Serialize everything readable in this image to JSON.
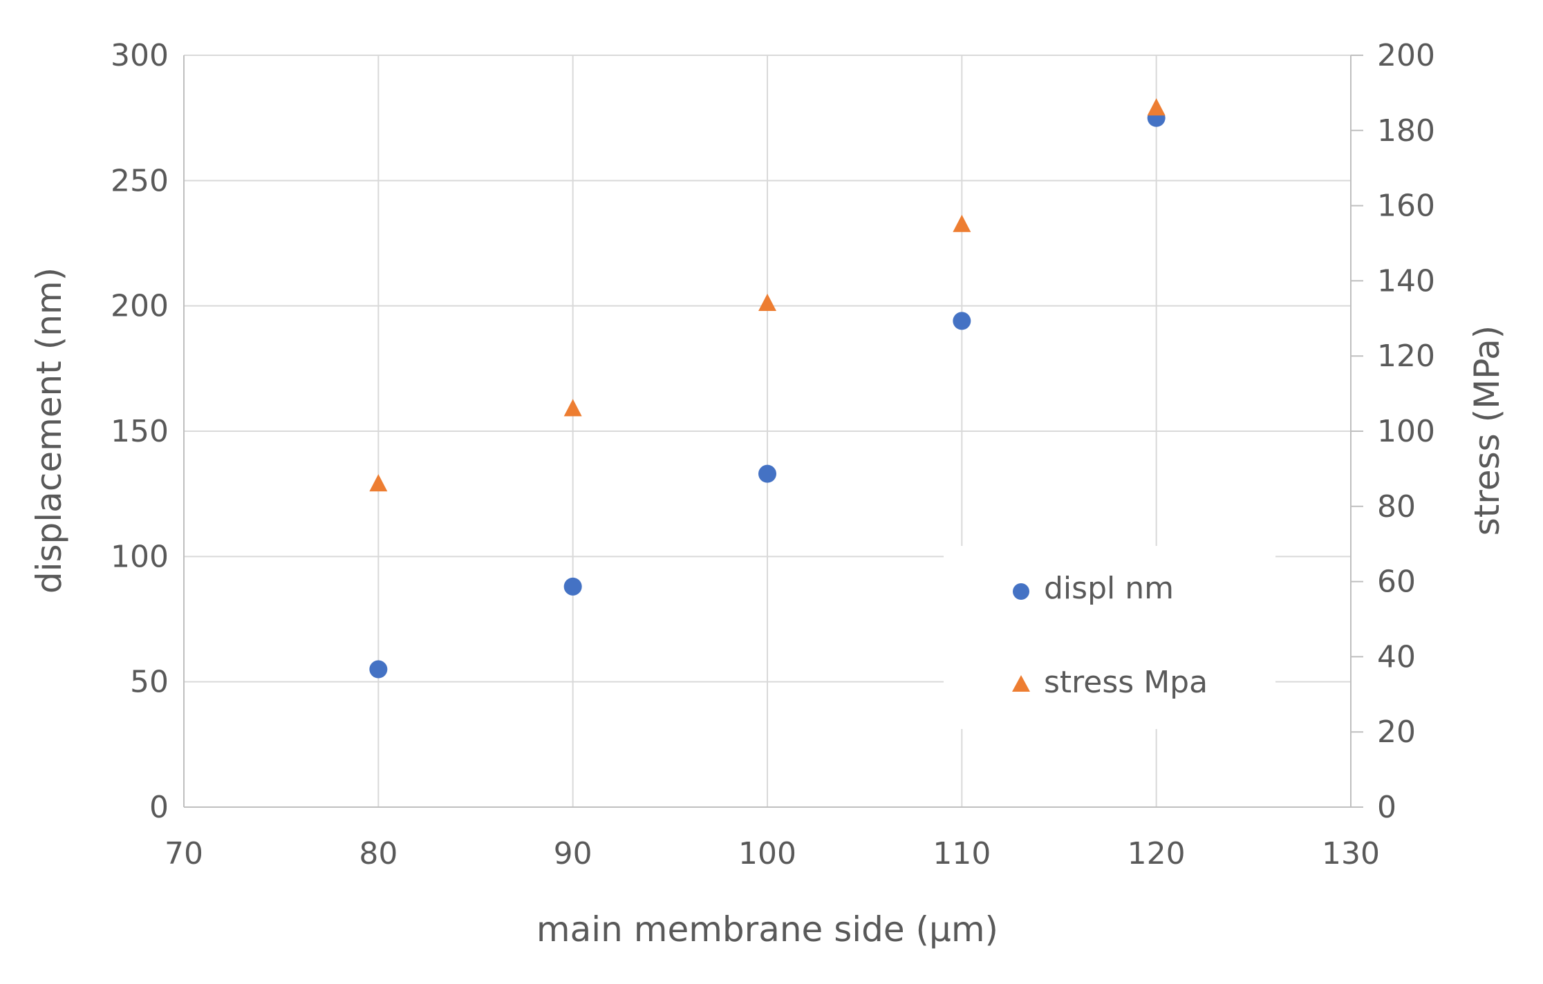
{
  "chart_data": {
    "type": "scatter",
    "title": "",
    "xlabel": "main membrane side (μm)",
    "ylabel": "displacement (nm)",
    "y2label": "stress (MPa)",
    "xlim": [
      70,
      130
    ],
    "ylim": [
      0,
      300
    ],
    "y2lim": [
      0,
      200
    ],
    "xticks": [
      70,
      80,
      90,
      100,
      110,
      120,
      130
    ],
    "yticks": [
      0,
      50,
      100,
      150,
      200,
      250,
      300
    ],
    "y2ticks": [
      0,
      20,
      40,
      60,
      80,
      100,
      120,
      140,
      160,
      180,
      200
    ],
    "grid": true,
    "legend_position": "right",
    "series": [
      {
        "name": "displ nm",
        "axis": "left",
        "marker": "circle",
        "color": "#4472C4",
        "x": [
          80,
          90,
          100,
          110,
          120
        ],
        "y": [
          55,
          88,
          133,
          194,
          275
        ]
      },
      {
        "name": "stress Mpa",
        "axis": "right",
        "marker": "triangle",
        "color": "#ED7D31",
        "x": [
          80,
          90,
          100,
          110,
          120
        ],
        "y": [
          86,
          106,
          134,
          155,
          186
        ]
      }
    ]
  }
}
